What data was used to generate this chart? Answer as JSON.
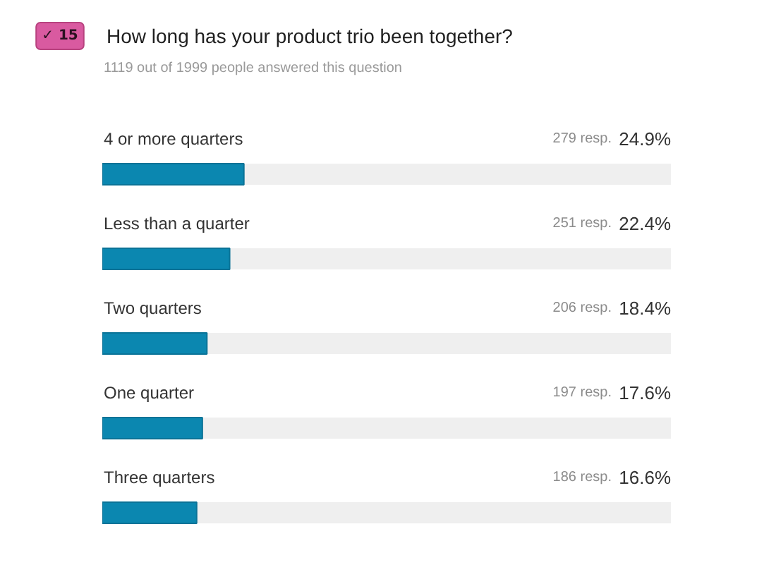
{
  "chart_data": {
    "type": "bar",
    "orientation": "horizontal",
    "title": "How long has your product trio been together?",
    "subtitle": "1119 out of 1999 people answered this question",
    "categories": [
      "4 or more quarters",
      "Less than a quarter",
      "Two quarters",
      "One quarter",
      "Three quarters"
    ],
    "values": [
      24.9,
      22.4,
      18.4,
      17.6,
      16.6
    ],
    "color": "#0b87b0",
    "value_labels": [
      "24.9%",
      "22.4%",
      "18.4%",
      "17.6%",
      "16.6%"
    ],
    "xlim": [
      0,
      100
    ],
    "tick_labels": "y",
    "annotations": [
      "✓ 15",
      "279 resp.",
      "251 resp.",
      "206 resp.",
      "197 resp.",
      "186 resp."
    ]
  }
}
